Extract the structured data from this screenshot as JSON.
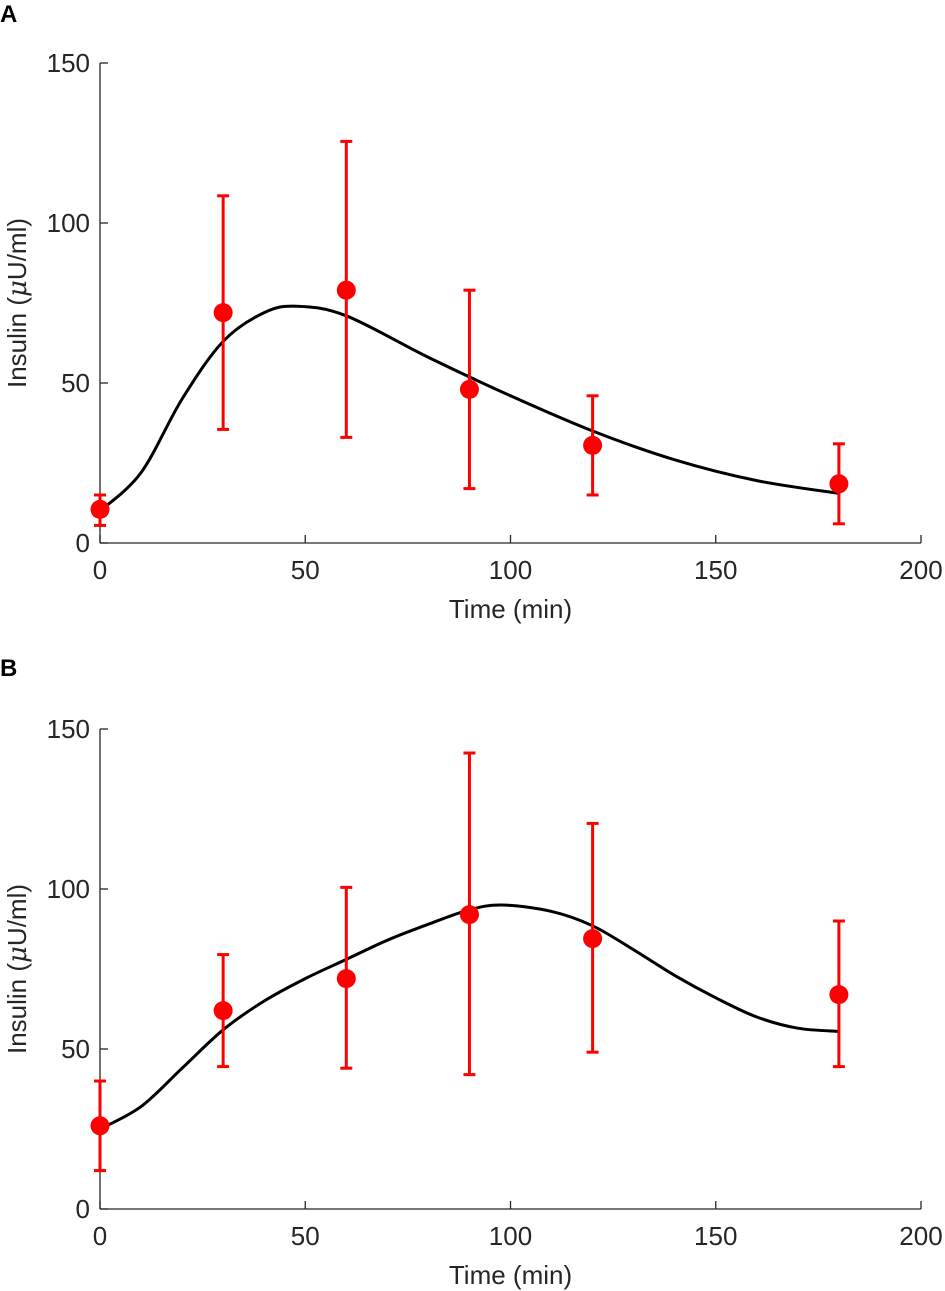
{
  "colors": {
    "data": "#ff0000",
    "fit": "#000000",
    "axis": "#262626"
  },
  "chart_data": [
    {
      "type": "scatter",
      "panel": "A",
      "xlabel": "Time (min)",
      "ylabel_main": "Insulin (",
      "ylabel_mu": "μ",
      "ylabel_rest": "U/ml)",
      "xlim": [
        0,
        200
      ],
      "ylim": [
        0,
        150
      ],
      "xticks": [
        0,
        50,
        100,
        150,
        200
      ],
      "yticks": [
        0,
        50,
        100,
        150
      ],
      "data": {
        "x": [
          0,
          30,
          60,
          90,
          120,
          180
        ],
        "y": [
          10.5,
          72,
          79,
          48,
          30.5,
          18.5
        ],
        "err_low": [
          5.5,
          35.5,
          33,
          17,
          15,
          6
        ],
        "err_high": [
          15,
          108.5,
          125.5,
          79,
          46,
          31
        ]
      },
      "fit": {
        "x": [
          0,
          10,
          20,
          30,
          40,
          48,
          60,
          80,
          100,
          120,
          140,
          160,
          180
        ],
        "y": [
          10,
          22,
          45,
          63,
          72,
          74,
          71,
          58,
          46,
          35,
          26,
          19.5,
          15.5
        ]
      }
    },
    {
      "type": "scatter",
      "panel": "B",
      "xlabel": "Time (min)",
      "ylabel_main": "Insulin (",
      "ylabel_mu": "μ",
      "ylabel_rest": "U/ml)",
      "xlim": [
        0,
        200
      ],
      "ylim": [
        0,
        150
      ],
      "xticks": [
        0,
        50,
        100,
        150,
        200
      ],
      "yticks": [
        0,
        50,
        100,
        150
      ],
      "data": {
        "x": [
          0,
          30,
          60,
          90,
          120,
          180
        ],
        "y": [
          26,
          62,
          72,
          92,
          84.5,
          67
        ],
        "err_low": [
          12,
          44.5,
          44,
          42,
          49,
          44.5
        ],
        "err_high": [
          40,
          79.5,
          100.5,
          142.5,
          120.5,
          90
        ]
      },
      "fit": {
        "x": [
          0,
          10,
          20,
          30,
          40,
          50,
          60,
          70,
          80,
          90,
          98,
          110,
          120,
          130,
          140,
          150,
          160,
          170,
          180
        ],
        "y": [
          25,
          32,
          44,
          56,
          65,
          72,
          78,
          84,
          89,
          93.5,
          95,
          93,
          88.5,
          81,
          73,
          66,
          60,
          56.5,
          55.5
        ]
      }
    }
  ]
}
